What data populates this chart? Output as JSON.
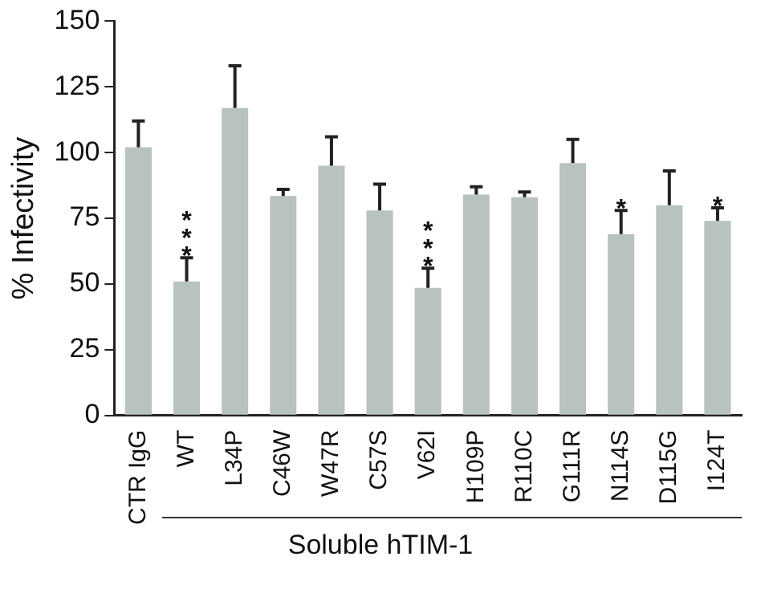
{
  "chart_data": {
    "type": "bar",
    "ylabel": "% Infectivity",
    "xlabel": "Soluble hTIM-1",
    "categories": [
      "CTR IgG",
      "WT",
      "L34P",
      "C46W",
      "W47R",
      "C57S",
      "V62I",
      "H109P",
      "R110C",
      "G111R",
      "N114S",
      "D115G",
      "I124T"
    ],
    "values": [
      102,
      51,
      117,
      83.5,
      95,
      78,
      48.5,
      84,
      83,
      96,
      69,
      80,
      74
    ],
    "errors": [
      [
        102,
        112
      ],
      [
        51,
        60
      ],
      [
        117,
        133
      ],
      [
        83.5,
        86
      ],
      [
        95,
        106
      ],
      [
        78,
        88
      ],
      [
        48.5,
        56
      ],
      [
        84,
        87
      ],
      [
        83,
        85
      ],
      [
        96,
        105
      ],
      [
        69,
        78
      ],
      [
        80,
        93
      ],
      [
        74,
        79
      ]
    ],
    "color": "#b8c2bf",
    "ylim": [
      0,
      150
    ],
    "yticks": [
      0,
      25,
      50,
      75,
      100,
      125,
      150
    ],
    "grid": false,
    "legend": false,
    "annotations": [
      {
        "text": "***",
        "x": "WT",
        "y": 60
      },
      {
        "text": "***",
        "x": "V62I",
        "y": 56
      },
      {
        "text": "*",
        "x": "N114S",
        "y": 78
      },
      {
        "text": "*",
        "x": "I124T",
        "y": 79
      }
    ]
  }
}
